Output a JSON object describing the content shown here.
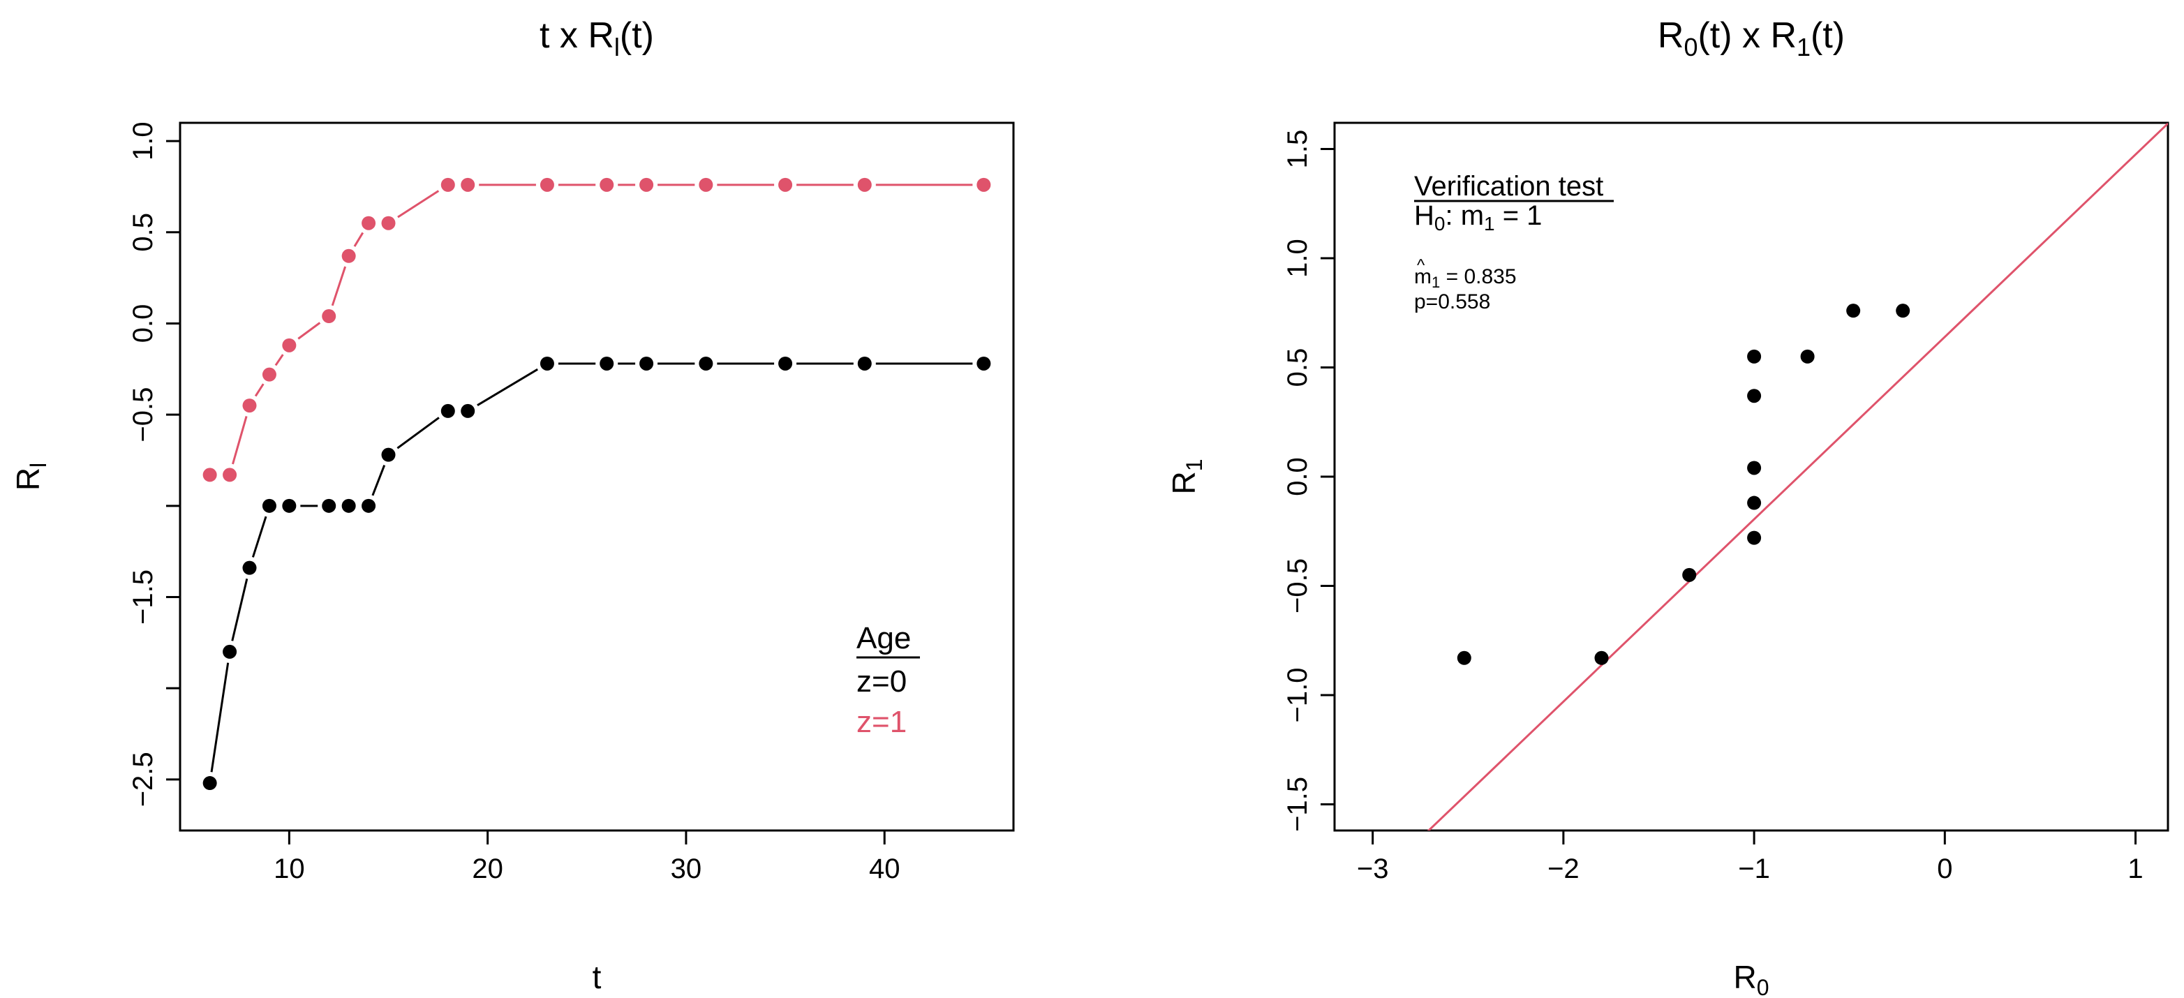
{
  "chart_data": [
    {
      "type": "line",
      "title_main": "t x R",
      "title_sub": "l",
      "title_tail": "(t)",
      "xlabel": "t",
      "ylabel_main": "R",
      "ylabel_sub": "l",
      "xlim": [
        4.5,
        46.5
      ],
      "ylim": [
        -2.78,
        1.1
      ],
      "xticks": [
        10,
        20,
        30,
        40
      ],
      "xtick_labels": [
        "10",
        "20",
        "30",
        "40"
      ],
      "yticks": [
        1.0,
        0.5,
        0.0,
        -0.5,
        -1.0,
        -1.5,
        -2.0,
        -2.5
      ],
      "ytick_labels": [
        "1.0",
        "0.5",
        "0.0",
        "−0.5",
        "",
        "−1.5",
        "",
        "−2.5"
      ],
      "grid": false,
      "legend": {
        "placement": "bottom-right",
        "title": "Age",
        "entries": [
          {
            "label": "z=0",
            "color": "#000000"
          },
          {
            "label": "z=1",
            "color": "#DF536B"
          }
        ]
      },
      "series": [
        {
          "color": "#000000",
          "points": [
            [
              6,
              -2.52
            ],
            [
              7,
              -1.8
            ],
            [
              8,
              -1.34
            ],
            [
              9,
              -1.0
            ],
            [
              10,
              -1.0
            ],
            [
              12,
              -1.0
            ],
            [
              13,
              -1.0
            ],
            [
              14,
              -1.0
            ],
            [
              15,
              -0.72
            ],
            [
              18,
              -0.48
            ],
            [
              19,
              -0.48
            ],
            [
              23,
              -0.22
            ],
            [
              26,
              -0.22
            ],
            [
              28,
              -0.22
            ],
            [
              31,
              -0.22
            ],
            [
              35,
              -0.22
            ],
            [
              39,
              -0.22
            ],
            [
              45,
              -0.22
            ]
          ]
        },
        {
          "color": "#DF536B",
          "points": [
            [
              6,
              -0.83
            ],
            [
              7,
              -0.83
            ],
            [
              8,
              -0.45
            ],
            [
              9,
              -0.28
            ],
            [
              10,
              -0.12
            ],
            [
              12,
              0.04
            ],
            [
              13,
              0.37
            ],
            [
              14,
              0.55
            ],
            [
              15,
              0.55
            ],
            [
              18,
              0.76
            ],
            [
              19,
              0.76
            ],
            [
              23,
              0.76
            ],
            [
              26,
              0.76
            ],
            [
              28,
              0.76
            ],
            [
              31,
              0.76
            ],
            [
              35,
              0.76
            ],
            [
              39,
              0.76
            ],
            [
              45,
              0.76
            ]
          ]
        }
      ]
    },
    {
      "type": "scatter",
      "title_parts": [
        {
          "t": "R",
          "sub": false
        },
        {
          "t": "0",
          "sub": true
        },
        {
          "t": "(t) x R",
          "sub": false
        },
        {
          "t": "1",
          "sub": true
        },
        {
          "t": "(t)",
          "sub": false
        }
      ],
      "xlabel_main": "R",
      "xlabel_sub": "0",
      "ylabel_main": "R",
      "ylabel_sub": "1",
      "xlim": [
        -3.2,
        1.17
      ],
      "ylim": [
        -1.62,
        1.62
      ],
      "xticks": [
        -3,
        -2,
        -1,
        0,
        1
      ],
      "xtick_labels": [
        "−3",
        "−2",
        "−1",
        "0",
        "1"
      ],
      "yticks": [
        1.5,
        1.0,
        0.5,
        0.0,
        -0.5,
        -1.0,
        -1.5
      ],
      "ytick_labels": [
        "1.5",
        "1.0",
        "0.5",
        "0.0",
        "−0.5",
        "−1.0",
        "−1.5"
      ],
      "grid": false,
      "points": [
        [
          -2.52,
          -0.83
        ],
        [
          -1.8,
          -0.83
        ],
        [
          -1.34,
          -0.45
        ],
        [
          -1.0,
          -0.28
        ],
        [
          -1.0,
          -0.12
        ],
        [
          -1.0,
          0.04
        ],
        [
          -1.0,
          0.37
        ],
        [
          -1.0,
          0.55
        ],
        [
          -0.72,
          0.55
        ],
        [
          -0.48,
          0.76
        ],
        [
          -0.22,
          0.76
        ]
      ],
      "fit_line": {
        "color": "#DF536B",
        "intercept": 0.64,
        "slope": 0.835
      },
      "annotation": {
        "title": "Verification test",
        "h0_main": "H",
        "h0_sub": "0",
        "h0_mid": ": m",
        "h0_sub2": "1",
        "h0_tail": " = 1",
        "hat": "^",
        "est_main": "m",
        "est_sub": "1",
        "est_tail": " = 0.835",
        "pvalue": "p=0.558"
      }
    }
  ]
}
